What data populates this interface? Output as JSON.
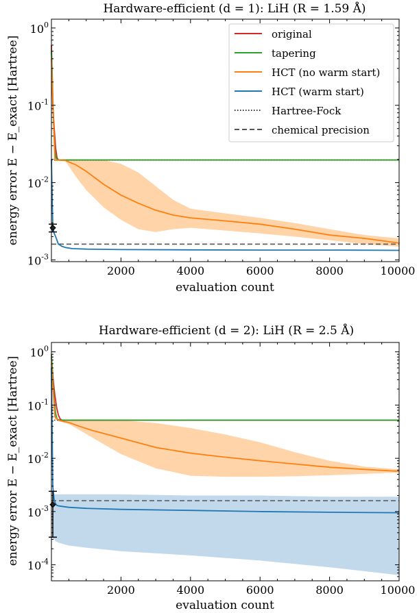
{
  "colors": {
    "original": "#d62728",
    "tapering": "#2ca02c",
    "hct_no_warm": "#ff7f0e",
    "hct_no_warm_band": "#ffcc99",
    "hct_warm": "#1f77b4",
    "hct_warm_band": "#b7d1e8",
    "hartree_fock": "#333333",
    "chem_precision": "#555555"
  },
  "chart_data": [
    {
      "type": "line",
      "title": "Hardware-efficient (d = 1): LiH (R = 1.59 Å)",
      "xlabel": "evaluation count",
      "ylabel": "energy error E − E_exact [Hartree]",
      "yscale": "log",
      "xlim": [
        0,
        10000
      ],
      "ylim": [
        0.00095,
        1.3
      ],
      "xticks": [
        "2000",
        "4000",
        "6000",
        "8000",
        "10000"
      ],
      "yticks": [
        {
          "value": 1,
          "label": "10^0"
        },
        {
          "value": 0.1,
          "label": "10^-1"
        },
        {
          "value": 0.01,
          "label": "10^-2"
        },
        {
          "value": 0.001,
          "label": "10^-3"
        }
      ],
      "legend_position": "top-right",
      "legend": [
        "original",
        "tapering",
        "HCT (no warm start)",
        "HCT (warm start)",
        "Hartree-Fock",
        "chemical precision"
      ],
      "hartree_fock": 0.0195,
      "chemical_precision": 0.0016,
      "starting_point": {
        "x": 0,
        "y": 0.0026,
        "err_low": 0.0023,
        "err_high": 0.0029
      },
      "series": [
        {
          "name": "original",
          "x": [
            0,
            40,
            80,
            120,
            160,
            200,
            10000
          ],
          "y": [
            0.6,
            0.1,
            0.05,
            0.028,
            0.021,
            0.0196,
            0.0196
          ]
        },
        {
          "name": "tapering",
          "x": [
            0,
            30,
            60,
            100,
            140,
            200,
            10000
          ],
          "y": [
            0.5,
            0.2,
            0.06,
            0.025,
            0.0205,
            0.0196,
            0.0196
          ]
        },
        {
          "name": "HCT (no warm start)",
          "x": [
            0,
            100,
            200,
            400,
            700,
            1000,
            1500,
            2000,
            2500,
            3000,
            3500,
            4000,
            5000,
            6000,
            7000,
            8000,
            9000,
            10000
          ],
          "y": [
            0.4,
            0.0195,
            0.0195,
            0.0193,
            0.017,
            0.014,
            0.0095,
            0.0069,
            0.0054,
            0.0044,
            0.0038,
            0.0035,
            0.0032,
            0.0029,
            0.0025,
            0.0021,
            0.0019,
            0.00165
          ],
          "band_low": [
            0.4,
            0.0195,
            0.0195,
            0.019,
            0.012,
            0.008,
            0.0048,
            0.0033,
            0.0025,
            0.0023,
            0.0025,
            0.0026,
            0.0024,
            0.0022,
            0.002,
            0.0018,
            0.0016,
            0.00148
          ],
          "band_high": [
            0.4,
            0.0198,
            0.0198,
            0.0198,
            0.0198,
            0.0198,
            0.0196,
            0.0175,
            0.0135,
            0.009,
            0.006,
            0.0046,
            0.004,
            0.0035,
            0.003,
            0.0025,
            0.0021,
            0.0019
          ]
        },
        {
          "name": "HCT (warm start)",
          "x": [
            0,
            40,
            80,
            120,
            160,
            200,
            300,
            400,
            600,
            1000,
            2000,
            4000,
            6000,
            8000,
            10000
          ],
          "y": [
            0.02,
            0.0026,
            0.0022,
            0.002,
            0.0018,
            0.0016,
            0.0015,
            0.00145,
            0.0014,
            0.00138,
            0.00136,
            0.00135,
            0.00134,
            0.00134,
            0.00133
          ]
        }
      ]
    },
    {
      "type": "line",
      "title": "Hardware-efficient (d = 2): LiH (R = 2.5 Å)",
      "xlabel": "evaluation count",
      "ylabel": "energy error E − E_exact [Hartree]",
      "yscale": "log",
      "xlim": [
        0,
        10000
      ],
      "ylim": [
        5e-05,
        1.5
      ],
      "xticks": [
        "2000",
        "4000",
        "6000",
        "8000",
        "10000"
      ],
      "yticks": [
        {
          "value": 1,
          "label": "10^0"
        },
        {
          "value": 0.1,
          "label": "10^-1"
        },
        {
          "value": 0.01,
          "label": "10^-2"
        },
        {
          "value": 0.001,
          "label": "10^-3"
        },
        {
          "value": 0.0001,
          "label": "10^-4"
        }
      ],
      "hartree_fock": 0.052,
      "chemical_precision": 0.0016,
      "starting_point": {
        "x": 0,
        "y": 0.00135,
        "err_low": 0.00033,
        "err_high": 0.0024
      },
      "series": [
        {
          "name": "original",
          "x": [
            0,
            50,
            100,
            150,
            200,
            250,
            300,
            10000
          ],
          "y": [
            0.8,
            0.3,
            0.15,
            0.09,
            0.065,
            0.055,
            0.052,
            0.052
          ]
        },
        {
          "name": "tapering",
          "x": [
            0,
            40,
            80,
            120,
            160,
            200,
            250,
            10000
          ],
          "y": [
            0.9,
            0.3,
            0.12,
            0.07,
            0.055,
            0.053,
            0.052,
            0.052
          ]
        },
        {
          "name": "HCT (no warm start)",
          "x": [
            0,
            100,
            200,
            300,
            500,
            800,
            1200,
            2000,
            3000,
            4000,
            5000,
            6000,
            7000,
            8000,
            9000,
            10000
          ],
          "y": [
            0.6,
            0.06,
            0.052,
            0.05,
            0.047,
            0.04,
            0.033,
            0.024,
            0.016,
            0.0125,
            0.0105,
            0.009,
            0.0078,
            0.0068,
            0.0062,
            0.0057
          ],
          "band_low": [
            0.6,
            0.055,
            0.05,
            0.048,
            0.044,
            0.034,
            0.024,
            0.012,
            0.0065,
            0.0047,
            0.0045,
            0.0045,
            0.0046,
            0.0048,
            0.0051,
            0.0054
          ],
          "band_high": [
            0.6,
            0.06,
            0.055,
            0.053,
            0.053,
            0.053,
            0.053,
            0.052,
            0.046,
            0.037,
            0.028,
            0.02,
            0.013,
            0.009,
            0.007,
            0.0062
          ]
        },
        {
          "name": "HCT (warm start)",
          "x": [
            0,
            40,
            80,
            120,
            160,
            200,
            300,
            500,
            1000,
            2000,
            4000,
            6000,
            8000,
            10000
          ],
          "y": [
            0.5,
            0.003,
            0.0016,
            0.0014,
            0.0013,
            0.00128,
            0.00125,
            0.0012,
            0.00115,
            0.0011,
            0.00105,
            0.001,
            0.00097,
            0.00095
          ],
          "band_low": [
            0.5,
            0.0003,
            0.0003,
            0.00028,
            0.00027,
            0.00026,
            0.00025,
            0.00023,
            0.00021,
            0.00018,
            0.00015,
            0.00012,
            9e-05,
            6.4e-05
          ],
          "band_high": [
            0.5,
            0.0022,
            0.0021,
            0.0021,
            0.0021,
            0.0021,
            0.0021,
            0.0021,
            0.0021,
            0.0021,
            0.002,
            0.002,
            0.0019,
            0.0019
          ]
        }
      ]
    }
  ]
}
